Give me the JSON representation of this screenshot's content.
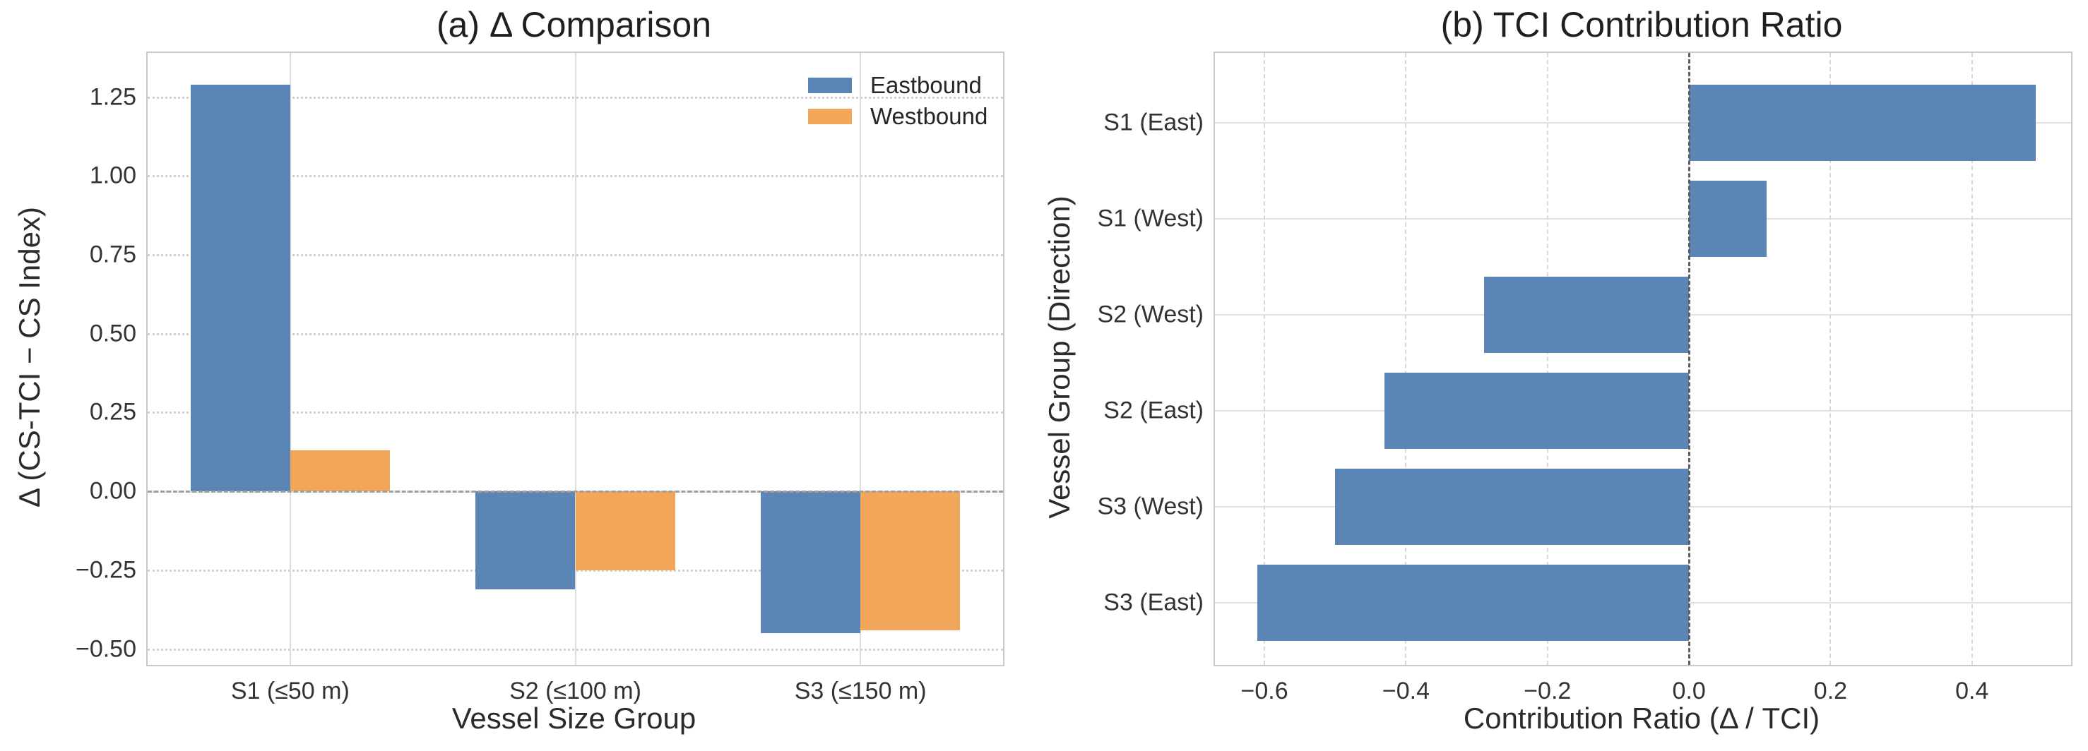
{
  "figure": {
    "background": "#ffffff",
    "accent_blue": "#5b85b5",
    "accent_orange": "#f2a65a",
    "grid_color": "#dcdcdc",
    "text_color": "#262626"
  },
  "chart_data": [
    {
      "id": "delta-comparison",
      "type": "bar",
      "title": "(a) Δ Comparison",
      "xlabel": "Vessel Size Group",
      "ylabel": "Δ (CS-TCI − CS Index)",
      "categories": [
        "S1 (≤50 m)",
        "S2 (≤100 m)",
        "S3 (≤150 m)"
      ],
      "series": [
        {
          "name": "Eastbound",
          "color": "#5b85b5",
          "values": [
            1.29,
            -0.31,
            -0.45
          ]
        },
        {
          "name": "Westbound",
          "color": "#f2a65a",
          "values": [
            0.13,
            -0.25,
            -0.44
          ]
        }
      ],
      "yticks": [
        1.25,
        1.0,
        0.75,
        0.5,
        0.25,
        0.0,
        -0.25,
        -0.5
      ],
      "ytick_labels": [
        "1.25",
        "1.00",
        "0.75",
        "0.50",
        "0.25",
        "0.00",
        "−0.25",
        "−0.50"
      ],
      "ylim": [
        -0.55,
        1.39
      ],
      "grid": "on",
      "zero_line": "dashed",
      "legend_position": "upper right"
    },
    {
      "id": "tci-contribution-ratio",
      "type": "bar-horizontal",
      "title": "(b) TCI Contribution Ratio",
      "xlabel": "Contribution Ratio (Δ / TCI)",
      "ylabel": "Vessel Group (Direction)",
      "categories": [
        "S1 (East)",
        "S1 (West)",
        "S2 (West)",
        "S2 (East)",
        "S3 (West)",
        "S3 (East)"
      ],
      "values": [
        0.49,
        0.11,
        -0.29,
        -0.43,
        -0.5,
        -0.61
      ],
      "bar_color": "#5b85b5",
      "xticks": [
        -0.6,
        -0.4,
        -0.2,
        0.0,
        0.2,
        0.4
      ],
      "xtick_labels": [
        "−0.6",
        "−0.4",
        "−0.2",
        "0.0",
        "0.2",
        "0.4"
      ],
      "xlim": [
        -0.67,
        0.54
      ],
      "grid": "on",
      "zero_line": "dashed",
      "legend_position": "none"
    }
  ]
}
